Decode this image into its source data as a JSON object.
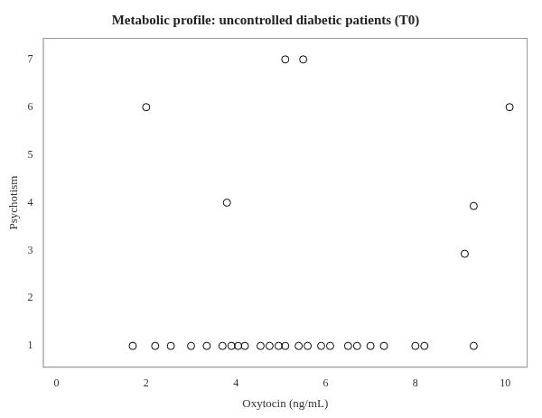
{
  "chart_data": {
    "type": "scatter",
    "title": "Metabolic profile: uncontrolled diabetic patients (T0)",
    "xlabel": "Oxytocin (ng/mL)",
    "ylabel": "Psychotism",
    "x": [
      1.7,
      2.2,
      2.55,
      3.0,
      3.35,
      3.7,
      3.9,
      4.05,
      4.2,
      4.55,
      4.75,
      4.95,
      5.1,
      5.4,
      5.6,
      5.9,
      6.1,
      6.5,
      6.7,
      7.0,
      7.3,
      8.0,
      8.2,
      9.3,
      2.0,
      3.8,
      5.1,
      5.5,
      9.1,
      9.3,
      10.1
    ],
    "y": [
      1,
      1,
      1,
      1,
      1,
      1,
      1,
      1,
      1,
      1,
      1,
      1,
      1,
      1,
      1,
      1,
      1,
      1,
      1,
      1,
      1,
      1,
      1,
      1,
      6,
      4,
      7,
      7,
      2.93,
      3.93,
      6
    ],
    "xlim": [
      -0.3,
      10.5
    ],
    "ylim": [
      0.55,
      7.45
    ],
    "xticks": [
      0,
      2,
      4,
      6,
      8,
      10
    ],
    "yticks": [
      1,
      2,
      3,
      4,
      5,
      6,
      7
    ],
    "color": "#000000",
    "marker": "circle",
    "grid": false
  }
}
